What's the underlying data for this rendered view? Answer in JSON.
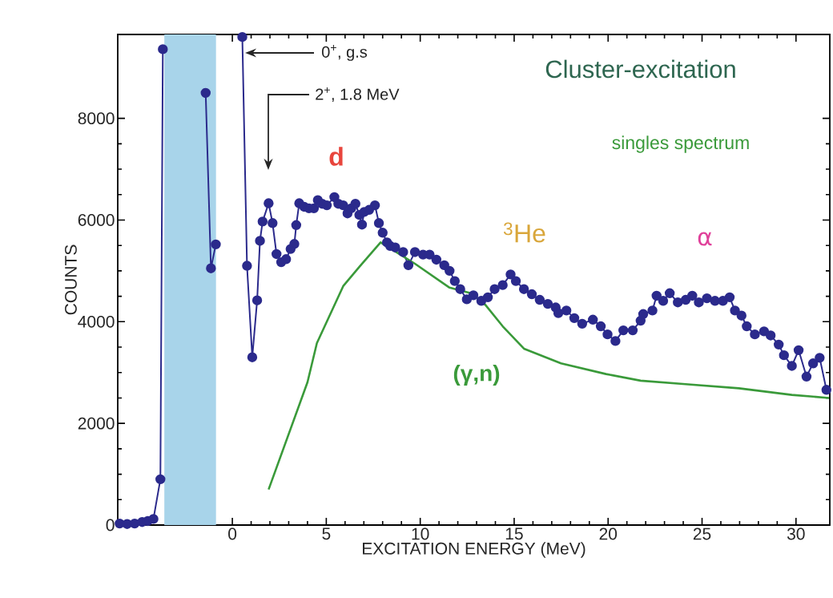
{
  "chart_data": {
    "type": "line",
    "xlabel": "EXCITATION ENERGY  (MeV)",
    "ylabel": "COUNTS",
    "xlim": [
      -6.1,
      31.8
    ],
    "ylim": [
      0,
      9650
    ],
    "xticks": [
      0,
      5,
      10,
      15,
      20,
      25,
      30
    ],
    "yticks": [
      0,
      2000,
      4000,
      6000,
      8000
    ],
    "bands": [
      {
        "axis": "x",
        "from": -3.62,
        "to": -0.87,
        "color": "#a8d4ea"
      }
    ],
    "series": [
      {
        "color": "#2b2a8c",
        "marker": "circle",
        "x": [
          -6.0,
          -5.6,
          -5.2,
          -4.8,
          -4.5,
          -4.2,
          -3.83,
          -3.7,
          -3.6,
          -1.42,
          -1.14,
          -0.88,
          -0.8,
          0.53,
          0.78,
          1.06,
          1.32,
          1.47,
          1.61,
          1.93,
          2.14,
          2.35,
          2.6,
          2.86,
          3.1,
          3.3,
          3.4,
          3.56,
          3.82,
          4.08,
          4.34,
          4.55,
          4.78,
          5.03,
          5.43,
          5.64,
          5.9,
          6.13,
          6.33,
          6.55,
          6.76,
          6.9,
          7.02,
          7.28,
          7.59,
          7.8,
          8.0,
          8.23,
          8.4,
          8.67,
          9.09,
          9.37,
          9.72,
          10.15,
          10.5,
          10.86,
          11.28,
          11.56,
          11.84,
          12.13,
          12.48,
          12.83,
          13.25,
          13.6,
          13.96,
          14.39,
          14.81,
          15.09,
          15.52,
          15.94,
          16.36,
          16.79,
          17.21,
          17.35,
          17.78,
          18.2,
          18.62,
          19.19,
          19.61,
          19.97,
          20.39,
          20.81,
          21.31,
          21.73,
          21.87,
          22.36,
          22.58,
          22.93,
          23.28,
          23.71,
          24.13,
          24.48,
          24.83,
          25.26,
          25.69,
          26.11,
          26.47,
          26.75,
          27.1,
          27.38,
          27.81,
          28.3,
          28.65,
          29.08,
          29.36,
          29.78,
          30.14,
          30.56,
          30.91,
          31.26,
          31.62
        ],
        "values": [
          30,
          20,
          30,
          60,
          80,
          120,
          900,
          9360,
          null,
          8500,
          5050,
          5520,
          null,
          9600,
          5100,
          3300,
          4420,
          5590,
          5970,
          6330,
          5940,
          5330,
          5170,
          5230,
          5430,
          5530,
          5900,
          6330,
          6260,
          6230,
          6230,
          6390,
          6320,
          6290,
          6450,
          6320,
          6290,
          6130,
          6230,
          6320,
          6100,
          5910,
          6160,
          6200,
          6290,
          5940,
          5750,
          5560,
          5490,
          5460,
          5370,
          5110,
          5370,
          5320,
          5320,
          5220,
          5110,
          5000,
          4800,
          4640,
          4440,
          4520,
          4410,
          4480,
          4640,
          4720,
          4930,
          4800,
          4640,
          4540,
          4430,
          4350,
          4280,
          4170,
          4220,
          4070,
          3960,
          4040,
          3910,
          3750,
          3620,
          3830,
          3830,
          4020,
          4150,
          4220,
          4510,
          4410,
          4560,
          4380,
          4430,
          4510,
          4380,
          4460,
          4410,
          4410,
          4480,
          4220,
          4120,
          3910,
          3750,
          3810,
          3730,
          3550,
          3340,
          3130,
          3440,
          2920,
          3180,
          3290,
          2660
        ]
      },
      {
        "color": "#3a9a3a",
        "marker": "none",
        "x": [
          1.93,
          4.0,
          4.5,
          5.9,
          6.76,
          7.89,
          9.72,
          11.56,
          12.69,
          13.47,
          14.39,
          15.52,
          17.49,
          19.89,
          21.73,
          24.13,
          26.96,
          29.78,
          31.76
        ],
        "values": [
          700,
          2810,
          3580,
          4700,
          5080,
          5560,
          5140,
          4670,
          4560,
          4330,
          3910,
          3470,
          3180,
          2970,
          2840,
          2770,
          2690,
          2560,
          2500
        ]
      }
    ],
    "annotations": [
      "0$^{+}$, g.s",
      "2$^{+}$, 1.8 MeV",
      "d",
      "$^{3}$He",
      "α",
      "(γ,n)",
      "Cluster-excitation",
      "singles spectrum"
    ]
  }
}
